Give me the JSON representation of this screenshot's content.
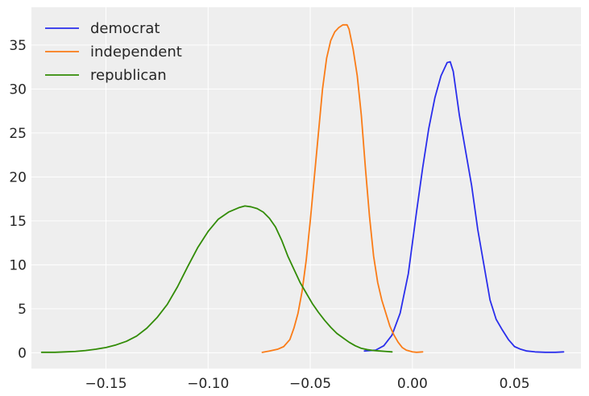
{
  "chart_data": {
    "type": "line",
    "title": "",
    "xlabel": "",
    "ylabel": "",
    "xlim": [
      -0.1865,
      0.0825
    ],
    "ylim": [
      -1.8,
      39.3
    ],
    "grid": true,
    "legend_position": "top-left",
    "x_ticks": [
      -0.15,
      -0.1,
      -0.05,
      0.0,
      0.05
    ],
    "x_tick_labels": [
      "−0.15",
      "−0.10",
      "−0.05",
      "0.00",
      "0.05"
    ],
    "y_ticks": [
      0,
      5,
      10,
      15,
      20,
      25,
      30,
      35
    ],
    "y_tick_labels": [
      "0",
      "5",
      "10",
      "15",
      "20",
      "25",
      "30",
      "35"
    ],
    "colors": {
      "democrat": "#2a2eec",
      "independent": "#fa7c17",
      "republican": "#328c06",
      "background": "#eeeeee",
      "grid": "#ffffff"
    },
    "series": [
      {
        "name": "democrat",
        "x": [
          -0.0235,
          -0.018,
          -0.014,
          -0.01,
          -0.006,
          -0.002,
          0.002,
          0.005,
          0.008,
          0.011,
          0.014,
          0.017,
          0.0185,
          0.02,
          0.023,
          0.026,
          0.029,
          0.032,
          0.035,
          0.038,
          0.041,
          0.044,
          0.047,
          0.05,
          0.053,
          0.056,
          0.06,
          0.065,
          0.07,
          0.074
        ],
        "y": [
          0.2,
          0.3,
          0.8,
          2.0,
          4.5,
          9.0,
          16.0,
          21.0,
          25.5,
          29.0,
          31.5,
          33.0,
          33.1,
          32.0,
          27.0,
          23.0,
          19.0,
          14.0,
          10.0,
          6.0,
          3.8,
          2.6,
          1.5,
          0.7,
          0.4,
          0.2,
          0.1,
          0.05,
          0.05,
          0.1
        ]
      },
      {
        "name": "independent",
        "x": [
          -0.0735,
          -0.07,
          -0.066,
          -0.063,
          -0.06,
          -0.058,
          -0.056,
          -0.054,
          -0.052,
          -0.05,
          -0.048,
          -0.046,
          -0.044,
          -0.042,
          -0.04,
          -0.038,
          -0.036,
          -0.034,
          -0.032,
          -0.031,
          -0.029,
          -0.027,
          -0.025,
          -0.023,
          -0.021,
          -0.019,
          -0.017,
          -0.015,
          -0.013,
          -0.011,
          -0.009,
          -0.007,
          -0.005,
          -0.003,
          0.0,
          0.002,
          0.005
        ],
        "y": [
          0.05,
          0.2,
          0.4,
          0.7,
          1.5,
          2.8,
          4.5,
          7.0,
          10.5,
          15.0,
          20.0,
          25.0,
          30.0,
          33.5,
          35.5,
          36.5,
          37.0,
          37.3,
          37.3,
          36.8,
          34.5,
          31.5,
          27.0,
          21.0,
          15.5,
          11.0,
          8.0,
          6.0,
          4.5,
          3.0,
          2.0,
          1.2,
          0.6,
          0.3,
          0.1,
          0.05,
          0.1
        ]
      },
      {
        "name": "republican",
        "x": [
          -0.1815,
          -0.175,
          -0.17,
          -0.165,
          -0.16,
          -0.155,
          -0.15,
          -0.145,
          -0.14,
          -0.135,
          -0.13,
          -0.125,
          -0.12,
          -0.115,
          -0.11,
          -0.105,
          -0.1,
          -0.095,
          -0.09,
          -0.085,
          -0.082,
          -0.079,
          -0.076,
          -0.073,
          -0.07,
          -0.067,
          -0.064,
          -0.061,
          -0.058,
          -0.055,
          -0.052,
          -0.049,
          -0.046,
          -0.043,
          -0.04,
          -0.037,
          -0.034,
          -0.031,
          -0.028,
          -0.025,
          -0.022,
          -0.019,
          -0.016,
          -0.013,
          -0.01
        ],
        "y": [
          0.05,
          0.05,
          0.1,
          0.15,
          0.25,
          0.4,
          0.6,
          0.9,
          1.3,
          1.9,
          2.8,
          4.0,
          5.5,
          7.5,
          9.8,
          12.0,
          13.8,
          15.2,
          16.0,
          16.5,
          16.7,
          16.6,
          16.4,
          16.0,
          15.3,
          14.3,
          12.8,
          11.0,
          9.5,
          8.0,
          6.8,
          5.6,
          4.6,
          3.7,
          2.9,
          2.2,
          1.7,
          1.2,
          0.8,
          0.5,
          0.35,
          0.25,
          0.2,
          0.15,
          0.1
        ]
      }
    ]
  }
}
